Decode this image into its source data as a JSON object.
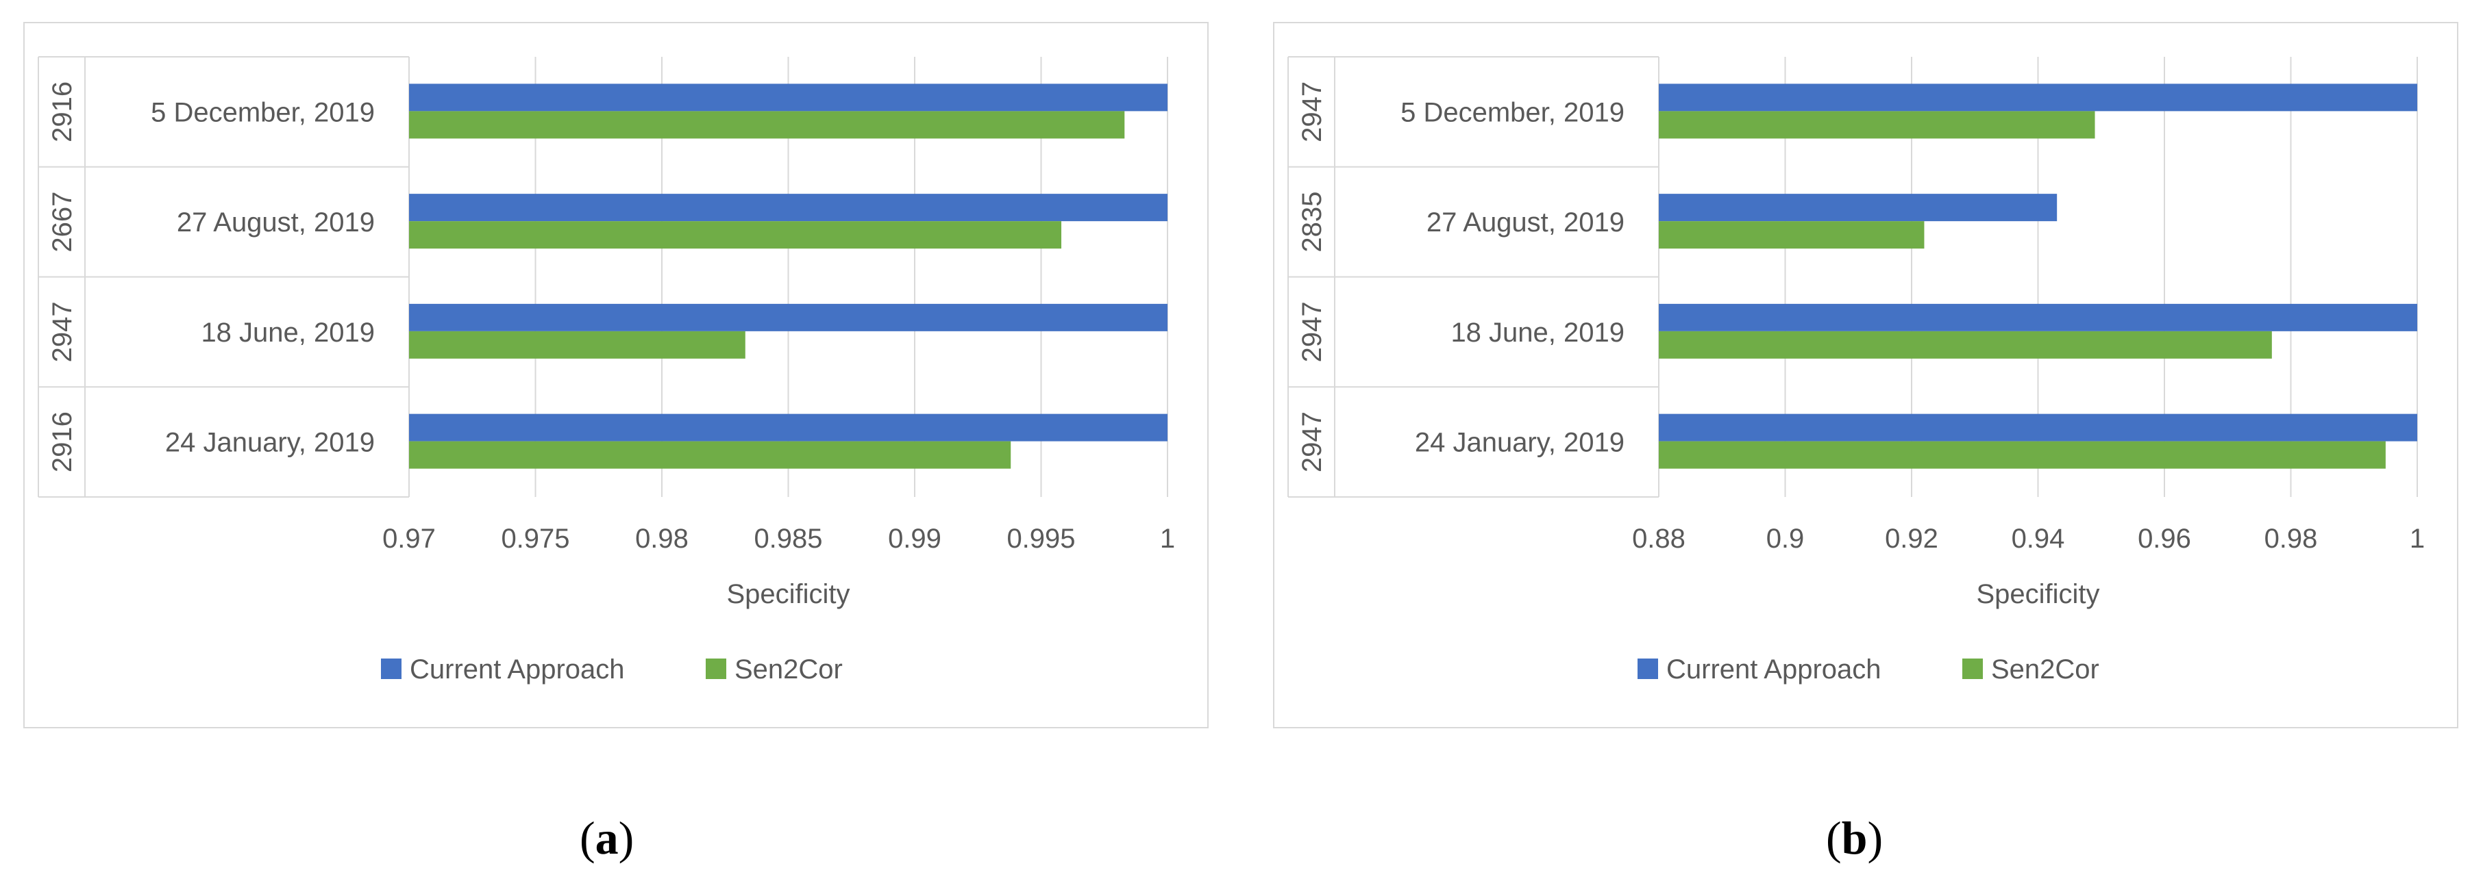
{
  "chart_data": [
    {
      "type": "bar",
      "orientation": "horizontal",
      "panel_label": "a",
      "categories": [
        "5 December, 2019",
        "27 August, 2019",
        "18 June, 2019",
        "24 January, 2019"
      ],
      "group_labels": [
        "2916",
        "2667",
        "2947",
        "2916"
      ],
      "series": [
        {
          "name": "Current Approach",
          "color": "#4472C4",
          "values": [
            1.0,
            1.0,
            1.0,
            1.0
          ]
        },
        {
          "name": "Sen2Cor",
          "color": "#70AD47",
          "values": [
            0.9983,
            0.9958,
            0.9833,
            0.9938
          ]
        }
      ],
      "xlabel": "Specificity",
      "xlim": [
        0.97,
        1.0
      ],
      "xticks": [
        "0.97",
        "0.975",
        "0.98",
        "0.985",
        "0.99",
        "0.995",
        "1"
      ],
      "xtick_values": [
        0.97,
        0.975,
        0.98,
        0.985,
        0.99,
        0.995,
        1.0
      ],
      "grid": true,
      "legend": "bottom"
    },
    {
      "type": "bar",
      "orientation": "horizontal",
      "panel_label": "b",
      "categories": [
        "5 December, 2019",
        "27 August, 2019",
        "18 June, 2019",
        "24 January, 2019"
      ],
      "group_labels": [
        "2947",
        "2835",
        "2947",
        "2947"
      ],
      "series": [
        {
          "name": "Current Approach",
          "color": "#4472C4",
          "values": [
            1.0,
            0.943,
            1.0,
            1.0
          ]
        },
        {
          "name": "Sen2Cor",
          "color": "#70AD47",
          "values": [
            0.949,
            0.922,
            0.977,
            0.995
          ]
        }
      ],
      "xlabel": "Specificity",
      "xlim": [
        0.88,
        1.0
      ],
      "xticks": [
        "0.88",
        "0.9",
        "0.92",
        "0.94",
        "0.96",
        "0.98",
        "1"
      ],
      "xtick_values": [
        0.88,
        0.9,
        0.92,
        0.94,
        0.96,
        0.98,
        1.0
      ],
      "grid": true,
      "legend": "bottom"
    }
  ],
  "captions": [
    {
      "open": "(",
      "label": "a",
      "close": ")"
    },
    {
      "open": "(",
      "label": "b",
      "close": ")"
    }
  ]
}
